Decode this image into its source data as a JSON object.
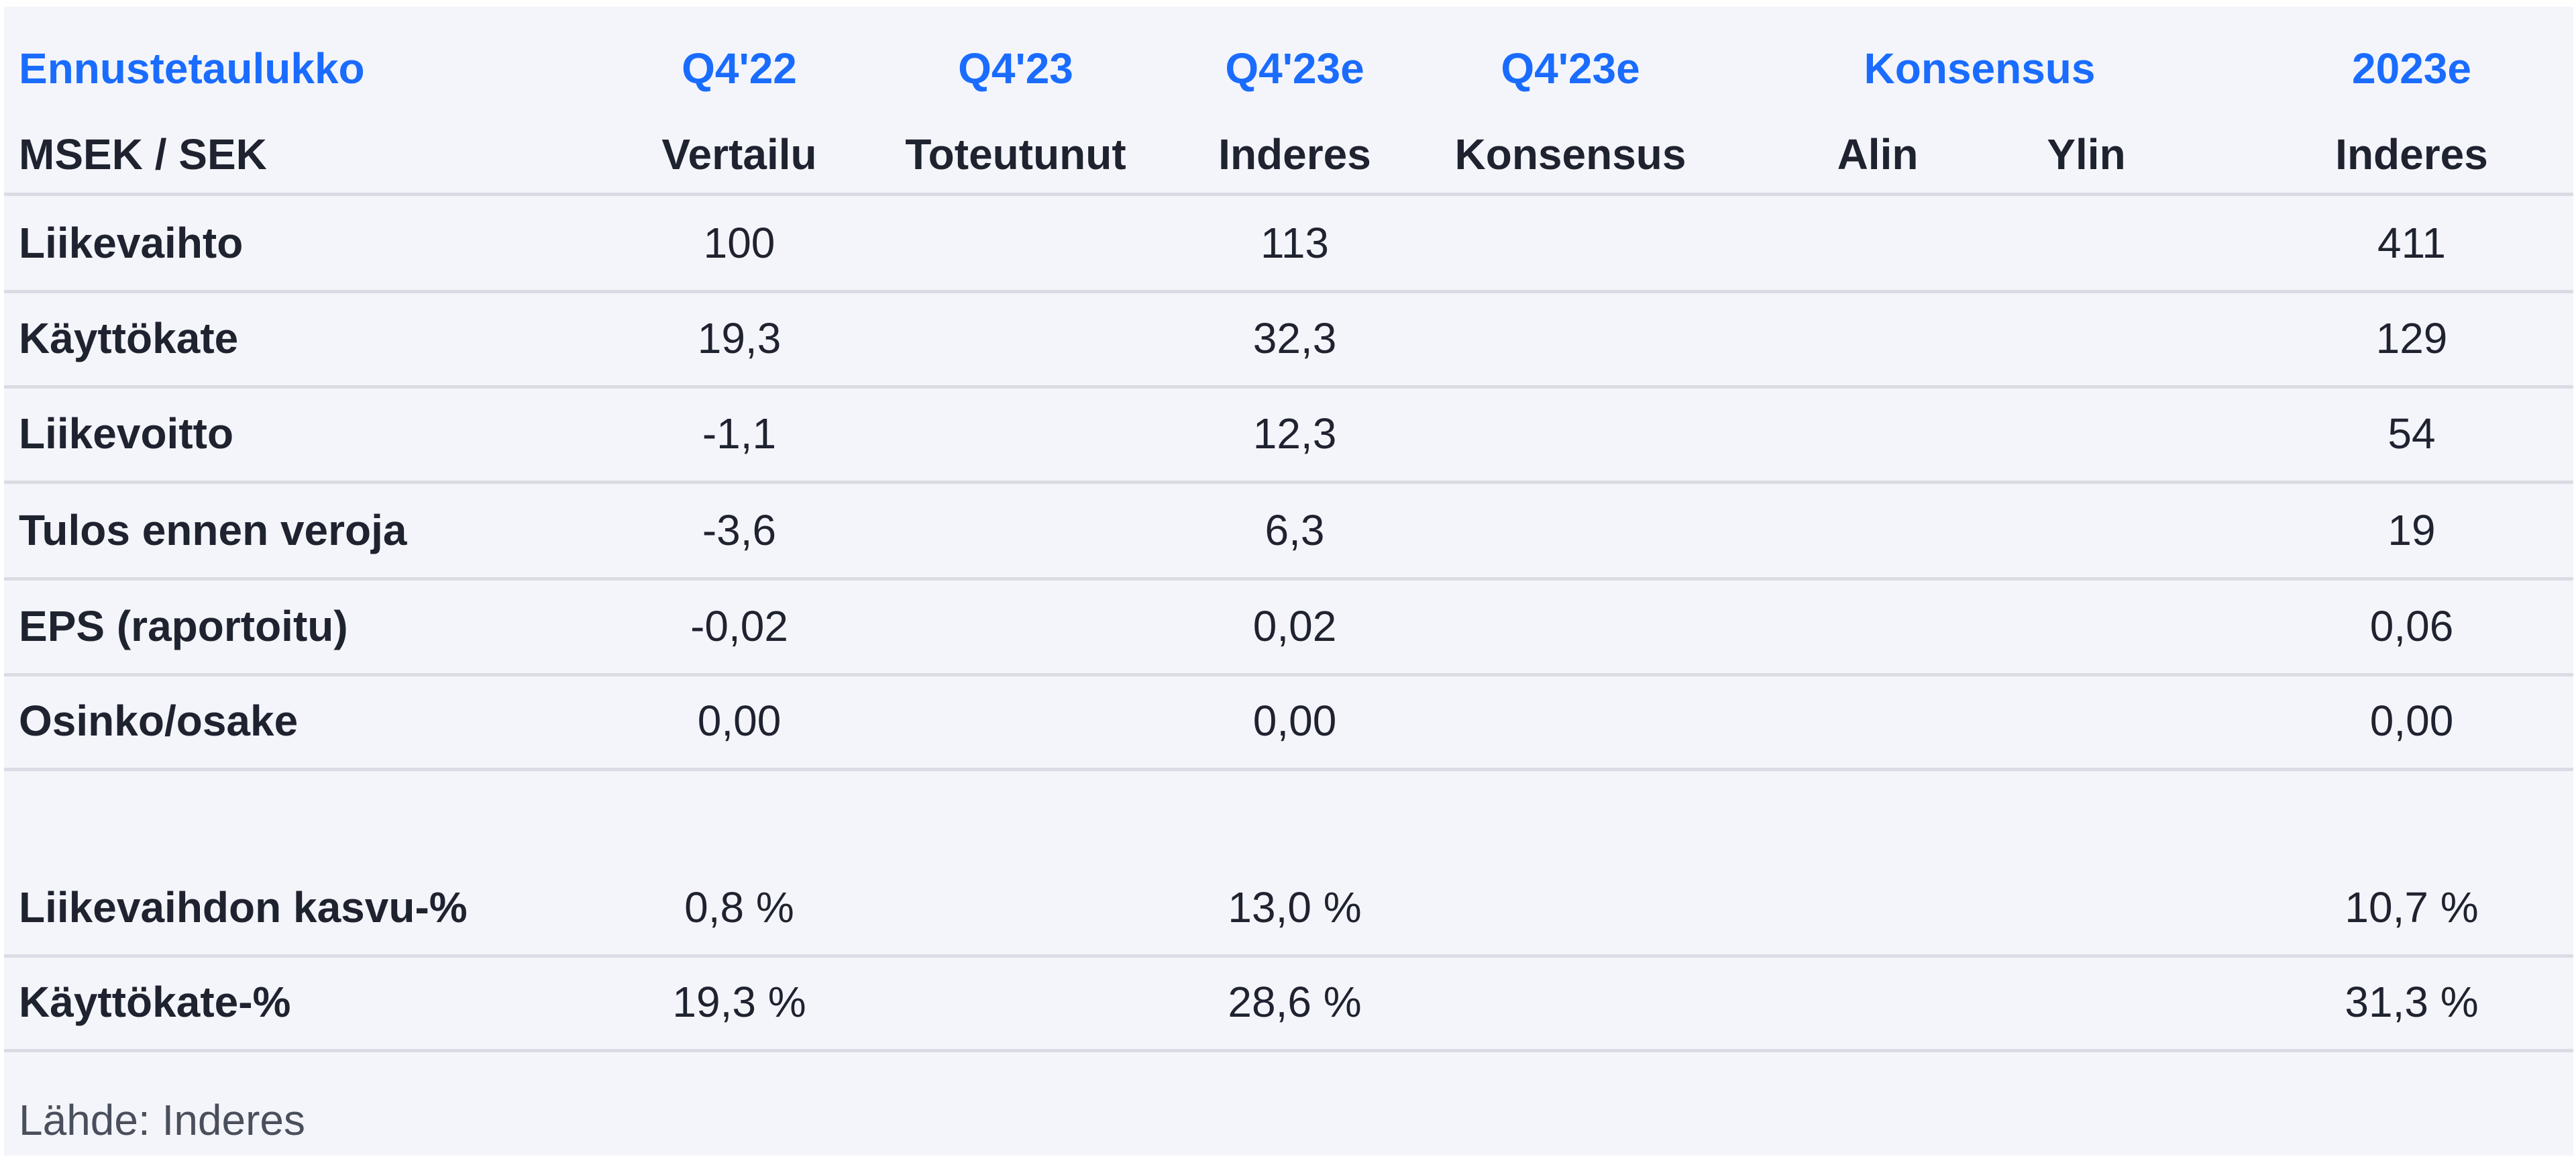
{
  "header": {
    "title": "Ennustetaulukko",
    "unit": "MSEK / SEK",
    "columns": [
      {
        "period": "Q4'22",
        "sub": "Vertailu"
      },
      {
        "period": "Q4'23",
        "sub": "Toteutunut"
      },
      {
        "period": "Q4'23e",
        "sub": "Inderes"
      },
      {
        "period": "Q4'23e",
        "sub": "Konsensus"
      },
      {
        "period": "Konsensus",
        "sub_low": "Alin",
        "sub_high": "Ylin"
      },
      {
        "period": "2023e",
        "sub": "Inderes"
      }
    ]
  },
  "rows": [
    {
      "label": "Liikevaihto",
      "q422": "100",
      "q423": "",
      "q423e_inderes": "113",
      "q423e_kons": "",
      "alin": "",
      "ylin": "",
      "y2023e": "411"
    },
    {
      "label": "Käyttökate",
      "q422": "19,3",
      "q423": "",
      "q423e_inderes": "32,3",
      "q423e_kons": "",
      "alin": "",
      "ylin": "",
      "y2023e": "129"
    },
    {
      "label": "Liikevoitto",
      "q422": "-1,1",
      "q423": "",
      "q423e_inderes": "12,3",
      "q423e_kons": "",
      "alin": "",
      "ylin": "",
      "y2023e": "54"
    },
    {
      "label": "Tulos ennen veroja",
      "q422": "-3,6",
      "q423": "",
      "q423e_inderes": "6,3",
      "q423e_kons": "",
      "alin": "",
      "ylin": "",
      "y2023e": "19"
    },
    {
      "label": "EPS (raportoitu)",
      "q422": "-0,02",
      "q423": "",
      "q423e_inderes": "0,02",
      "q423e_kons": "",
      "alin": "",
      "ylin": "",
      "y2023e": "0,06"
    },
    {
      "label": "Osinko/osake",
      "q422": "0,00",
      "q423": "",
      "q423e_inderes": "0,00",
      "q423e_kons": "",
      "alin": "",
      "ylin": "",
      "y2023e": "0,00"
    }
  ],
  "ratio_rows": [
    {
      "label": "Liikevaihdon kasvu-%",
      "q422": "0,8 %",
      "q423": "",
      "q423e_inderes": "13,0 %",
      "q423e_kons": "",
      "alin": "",
      "ylin": "",
      "y2023e": "10,7 %"
    },
    {
      "label": "Käyttökate-%",
      "q422": "19,3 %",
      "q423": "",
      "q423e_inderes": "28,6 %",
      "q423e_kons": "",
      "alin": "",
      "ylin": "",
      "y2023e": "31,3 %"
    }
  ],
  "source": "Lähde: Inderes",
  "colors": {
    "accent": "#1a6cff",
    "background": "#f4f5fa",
    "divider": "#d9dce4",
    "text": "#1f2330"
  }
}
